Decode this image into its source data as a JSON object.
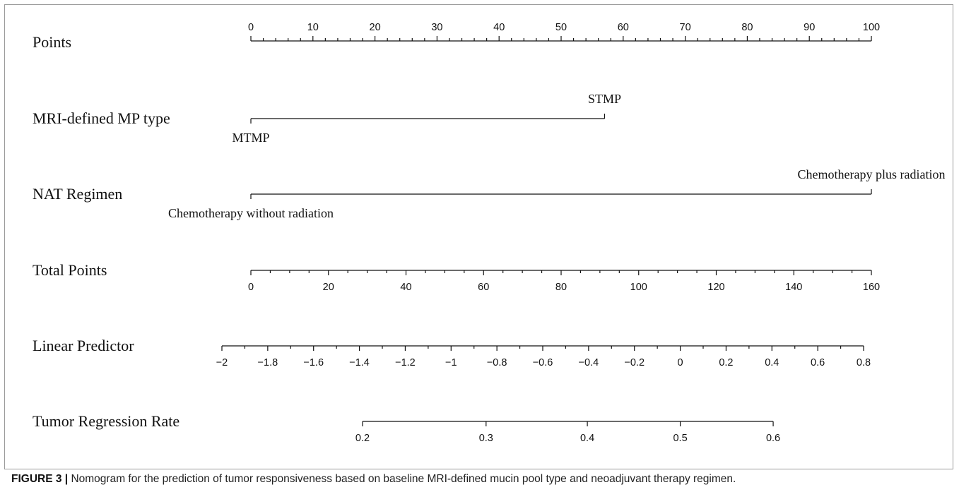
{
  "caption": {
    "figure_id": "FIGURE 3 |",
    "text": " Nomogram for the prediction of tumor responsiveness based on baseline MRI-defined mucin pool type and neoadjuvant therapy regimen."
  },
  "chart_data": {
    "type": "nomogram",
    "rows": [
      {
        "label": "Points",
        "kind": "scale",
        "min": 0,
        "max": 100,
        "tick_labels": [
          "0",
          "10",
          "20",
          "30",
          "40",
          "50",
          "60",
          "70",
          "80",
          "90",
          "100"
        ],
        "major_values": [
          0,
          10,
          20,
          30,
          40,
          50,
          60,
          70,
          80,
          90,
          100
        ],
        "minor_step": 2,
        "label_side": "above"
      },
      {
        "label": "MRI-defined MP type",
        "kind": "categorical",
        "categories": [
          {
            "name": "MTMP",
            "points": 0
          },
          {
            "name": "STMP",
            "points": 57
          }
        ]
      },
      {
        "label": "NAT Regimen",
        "kind": "categorical",
        "categories": [
          {
            "name": "Chemotherapy without radiation",
            "points": 0
          },
          {
            "name": "Chemotherapy plus radiation",
            "points": 100
          }
        ]
      },
      {
        "label": "Total Points",
        "kind": "scale",
        "min": 0,
        "max": 160,
        "tick_labels": [
          "0",
          "20",
          "40",
          "60",
          "80",
          "100",
          "120",
          "140",
          "160"
        ],
        "major_values": [
          0,
          20,
          40,
          60,
          80,
          100,
          120,
          140,
          160
        ],
        "minor_step": 5,
        "label_side": "below"
      },
      {
        "label": "Linear Predictor",
        "kind": "scale",
        "min": -2,
        "max": 0.8,
        "tick_labels": [
          "−2",
          "−1.8",
          "−1.6",
          "−1.4",
          "−1.2",
          "−1",
          "−0.8",
          "−0.6",
          "−0.4",
          "−0.2",
          "0",
          "0.2",
          "0.4",
          "0.6",
          "0.8"
        ],
        "major_values": [
          -2,
          -1.8,
          -1.6,
          -1.4,
          -1.2,
          -1,
          -0.8,
          -0.6,
          -0.4,
          -0.2,
          0,
          0.2,
          0.4,
          0.6,
          0.8
        ],
        "minor_step": 0.1,
        "label_side": "below"
      },
      {
        "label": "Tumor Regression Rate",
        "kind": "probability",
        "tick_labels": [
          "0.2",
          "0.3",
          "0.4",
          "0.5",
          "0.6"
        ],
        "values": [
          0.2,
          0.3,
          0.4,
          0.5,
          0.6
        ],
        "label_side": "below"
      }
    ]
  }
}
